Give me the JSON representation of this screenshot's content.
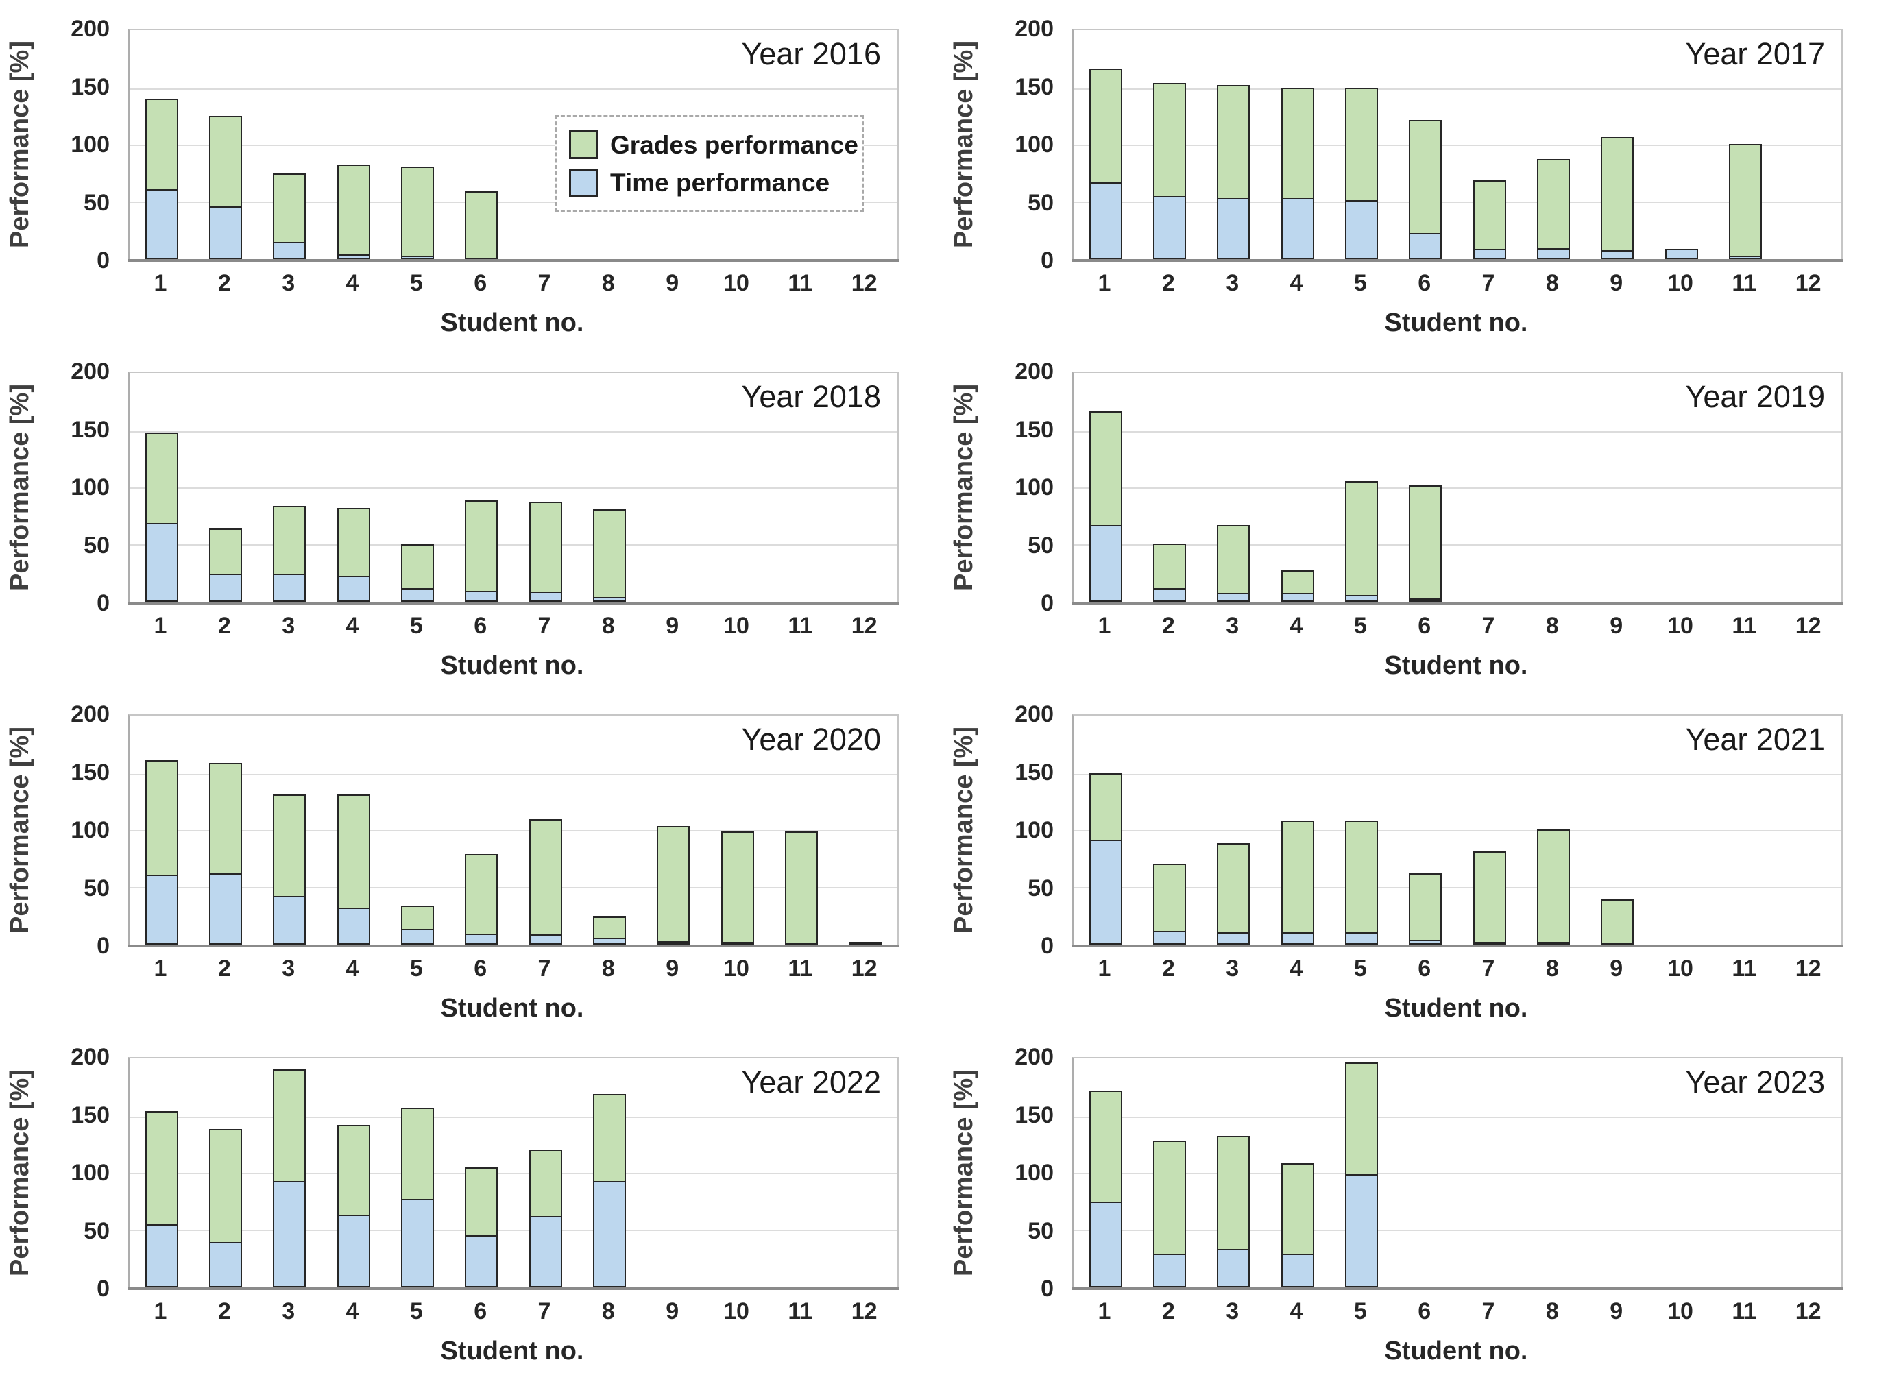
{
  "page": {
    "background": "#ffffff"
  },
  "legend": {
    "items": [
      {
        "label": "Grades performance",
        "color": "#c5e0b4"
      },
      {
        "label": "Time performance",
        "color": "#bdd7ee"
      }
    ],
    "border_color": "#a9a9a9",
    "shown_on_chart": "Year 2016"
  },
  "colors": {
    "grades_fill": "#c5e0b4",
    "time_fill": "#bdd7ee",
    "bar_border": "#262626",
    "gridline": "#dcdcdc",
    "plot_border": "#c6c6c6",
    "axis_line": "#8a8a8a",
    "text": "#262626",
    "title_text": "#1a1a1a"
  },
  "chart_data": [
    {
      "type": "bar",
      "stacked": true,
      "title": "Year 2016",
      "xlabel": "Student no.",
      "ylabel": "Performance [%]",
      "ylim": [
        0,
        200
      ],
      "yticks": [
        0,
        50,
        100,
        150,
        200
      ],
      "grid": true,
      "legend": true,
      "categories": [
        1,
        2,
        3,
        4,
        5,
        6,
        7,
        8,
        9,
        10,
        11,
        12
      ],
      "series": [
        {
          "name": "Time performance",
          "color": "#bdd7ee",
          "values": [
            62,
            47,
            15,
            4,
            3,
            0,
            0,
            0,
            0,
            0,
            0,
            0
          ]
        },
        {
          "name": "Grades performance",
          "color": "#c5e0b4",
          "values": [
            81,
            81,
            62,
            81,
            80,
            60,
            0,
            0,
            0,
            0,
            0,
            0
          ]
        }
      ]
    },
    {
      "type": "bar",
      "stacked": true,
      "title": "Year 2017",
      "xlabel": "Student no.",
      "ylabel": "Performance [%]",
      "ylim": [
        0,
        200
      ],
      "yticks": [
        0,
        50,
        100,
        150,
        200
      ],
      "grid": true,
      "legend": false,
      "categories": [
        1,
        2,
        3,
        4,
        5,
        6,
        7,
        8,
        9,
        10,
        11,
        12
      ],
      "series": [
        {
          "name": "Time performance",
          "color": "#bdd7ee",
          "values": [
            68,
            56,
            54,
            54,
            52,
            23,
            9,
            10,
            8,
            9,
            3,
            0
          ]
        },
        {
          "name": "Grades performance",
          "color": "#c5e0b4",
          "values": [
            102,
            101,
            101,
            99,
            101,
            101,
            62,
            80,
            101,
            0,
            100,
            0
          ]
        }
      ]
    },
    {
      "type": "bar",
      "stacked": true,
      "title": "Year 2018",
      "xlabel": "Student no.",
      "ylabel": "Performance [%]",
      "ylim": [
        0,
        200
      ],
      "yticks": [
        0,
        50,
        100,
        150,
        200
      ],
      "grid": true,
      "legend": false,
      "categories": [
        1,
        2,
        3,
        4,
        5,
        6,
        7,
        8,
        9,
        10,
        11,
        12
      ],
      "series": [
        {
          "name": "Time performance",
          "color": "#bdd7ee",
          "values": [
            70,
            25,
            25,
            23,
            12,
            10,
            9,
            4,
            0,
            0,
            0,
            0
          ]
        },
        {
          "name": "Grades performance",
          "color": "#c5e0b4",
          "values": [
            81,
            41,
            61,
            61,
            40,
            81,
            81,
            79,
            0,
            0,
            0,
            0
          ]
        }
      ]
    },
    {
      "type": "bar",
      "stacked": true,
      "title": "Year 2019",
      "xlabel": "Student no.",
      "ylabel": "Performance [%]",
      "ylim": [
        0,
        200
      ],
      "yticks": [
        0,
        50,
        100,
        150,
        200
      ],
      "grid": true,
      "legend": false,
      "categories": [
        1,
        2,
        3,
        4,
        5,
        6,
        7,
        8,
        9,
        10,
        11,
        12
      ],
      "series": [
        {
          "name": "Time performance",
          "color": "#bdd7ee",
          "values": [
            68,
            12,
            8,
            8,
            6,
            3,
            0,
            0,
            0,
            0,
            0,
            0
          ]
        },
        {
          "name": "Grades performance",
          "color": "#c5e0b4",
          "values": [
            102,
            41,
            61,
            21,
            102,
            101,
            0,
            0,
            0,
            0,
            0,
            0
          ]
        }
      ]
    },
    {
      "type": "bar",
      "stacked": true,
      "title": "Year 2020",
      "xlabel": "Student no.",
      "ylabel": "Performance [%]",
      "ylim": [
        0,
        200
      ],
      "yticks": [
        0,
        50,
        100,
        150,
        200
      ],
      "grid": true,
      "legend": false,
      "categories": [
        1,
        2,
        3,
        4,
        5,
        6,
        7,
        8,
        9,
        10,
        11,
        12
      ],
      "series": [
        {
          "name": "Time performance",
          "color": "#bdd7ee",
          "values": [
            62,
            63,
            43,
            33,
            14,
            10,
            9,
            6,
            3,
            2,
            0,
            0
          ]
        },
        {
          "name": "Grades performance",
          "color": "#c5e0b4",
          "values": [
            102,
            99,
            91,
            101,
            22,
            71,
            103,
            20,
            103,
            99,
            100,
            2
          ]
        }
      ]
    },
    {
      "type": "bar",
      "stacked": true,
      "title": "Year 2021",
      "xlabel": "Student no.",
      "ylabel": "Performance [%]",
      "ylim": [
        0,
        200
      ],
      "yticks": [
        0,
        50,
        100,
        150,
        200
      ],
      "grid": true,
      "legend": false,
      "categories": [
        1,
        2,
        3,
        4,
        5,
        6,
        7,
        8,
        9,
        10,
        11,
        12
      ],
      "series": [
        {
          "name": "Time performance",
          "color": "#bdd7ee",
          "values": [
            93,
            12,
            11,
            11,
            11,
            4,
            2,
            1,
            0,
            0,
            0,
            0
          ]
        },
        {
          "name": "Grades performance",
          "color": "#c5e0b4",
          "values": [
            60,
            61,
            80,
            100,
            100,
            60,
            81,
            101,
            40,
            0,
            0,
            0
          ]
        }
      ]
    },
    {
      "type": "bar",
      "stacked": true,
      "title": "Year 2022",
      "xlabel": "Student no.",
      "ylabel": "Performance [%]",
      "ylim": [
        0,
        200
      ],
      "yticks": [
        0,
        50,
        100,
        150,
        200
      ],
      "grid": true,
      "legend": false,
      "categories": [
        1,
        2,
        3,
        4,
        5,
        6,
        7,
        8,
        9,
        10,
        11,
        12
      ],
      "series": [
        {
          "name": "Time performance",
          "color": "#bdd7ee",
          "values": [
            56,
            40,
            94,
            64,
            78,
            46,
            63,
            94,
            0,
            0,
            0,
            0
          ]
        },
        {
          "name": "Grades performance",
          "color": "#c5e0b4",
          "values": [
            101,
            101,
            100,
            81,
            82,
            61,
            60,
            78,
            0,
            0,
            0,
            0
          ]
        }
      ]
    },
    {
      "type": "bar",
      "stacked": true,
      "title": "Year 2023",
      "xlabel": "Student no.",
      "ylabel": "Performance [%]",
      "ylim": [
        0,
        200
      ],
      "yticks": [
        0,
        50,
        100,
        150,
        200
      ],
      "grid": true,
      "legend": false,
      "categories": [
        1,
        2,
        3,
        4,
        5,
        6,
        7,
        8,
        9,
        10,
        11,
        12
      ],
      "series": [
        {
          "name": "Time performance",
          "color": "#bdd7ee",
          "values": [
            76,
            30,
            34,
            30,
            100,
            0,
            0,
            0,
            0,
            0,
            0,
            0
          ]
        },
        {
          "name": "Grades performance",
          "color": "#c5e0b4",
          "values": [
            99,
            101,
            101,
            81,
            101,
            0,
            0,
            0,
            0,
            0,
            0,
            0
          ]
        }
      ]
    }
  ]
}
